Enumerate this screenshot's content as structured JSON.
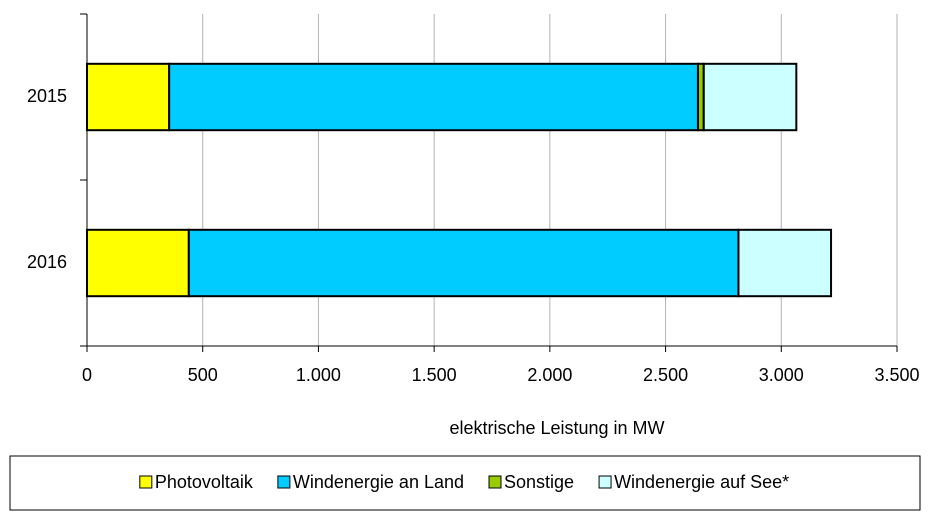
{
  "chart_data": {
    "type": "stacked-bar-horizontal",
    "x_label": "elektrische Leistung in MW",
    "categories": [
      "2015",
      "2016"
    ],
    "series": [
      {
        "name": "Photovoltaik",
        "color": "#ffff00",
        "values": [
          355,
          440
        ]
      },
      {
        "name": "Windenergie an Land",
        "color": "#00ccff",
        "values": [
          2285,
          2375
        ]
      },
      {
        "name": "Sonstige",
        "color": "#99cc00",
        "values": [
          25,
          0
        ]
      },
      {
        "name": "Windenergie auf See*",
        "color": "#ccffff",
        "values": [
          400,
          400
        ]
      }
    ],
    "xlim": [
      0,
      3500
    ],
    "xticks": [
      0,
      500,
      {
        "value": 1000,
        "label": "1.000"
      },
      {
        "value": 1500,
        "label": "1.500"
      },
      {
        "value": 2000,
        "label": "2.000"
      },
      {
        "value": 2500,
        "label": "2.500"
      },
      {
        "value": 3000,
        "label": "3.000"
      },
      {
        "value": 3500,
        "label": "3.500"
      }
    ],
    "grid": true,
    "legend": "bottom"
  }
}
